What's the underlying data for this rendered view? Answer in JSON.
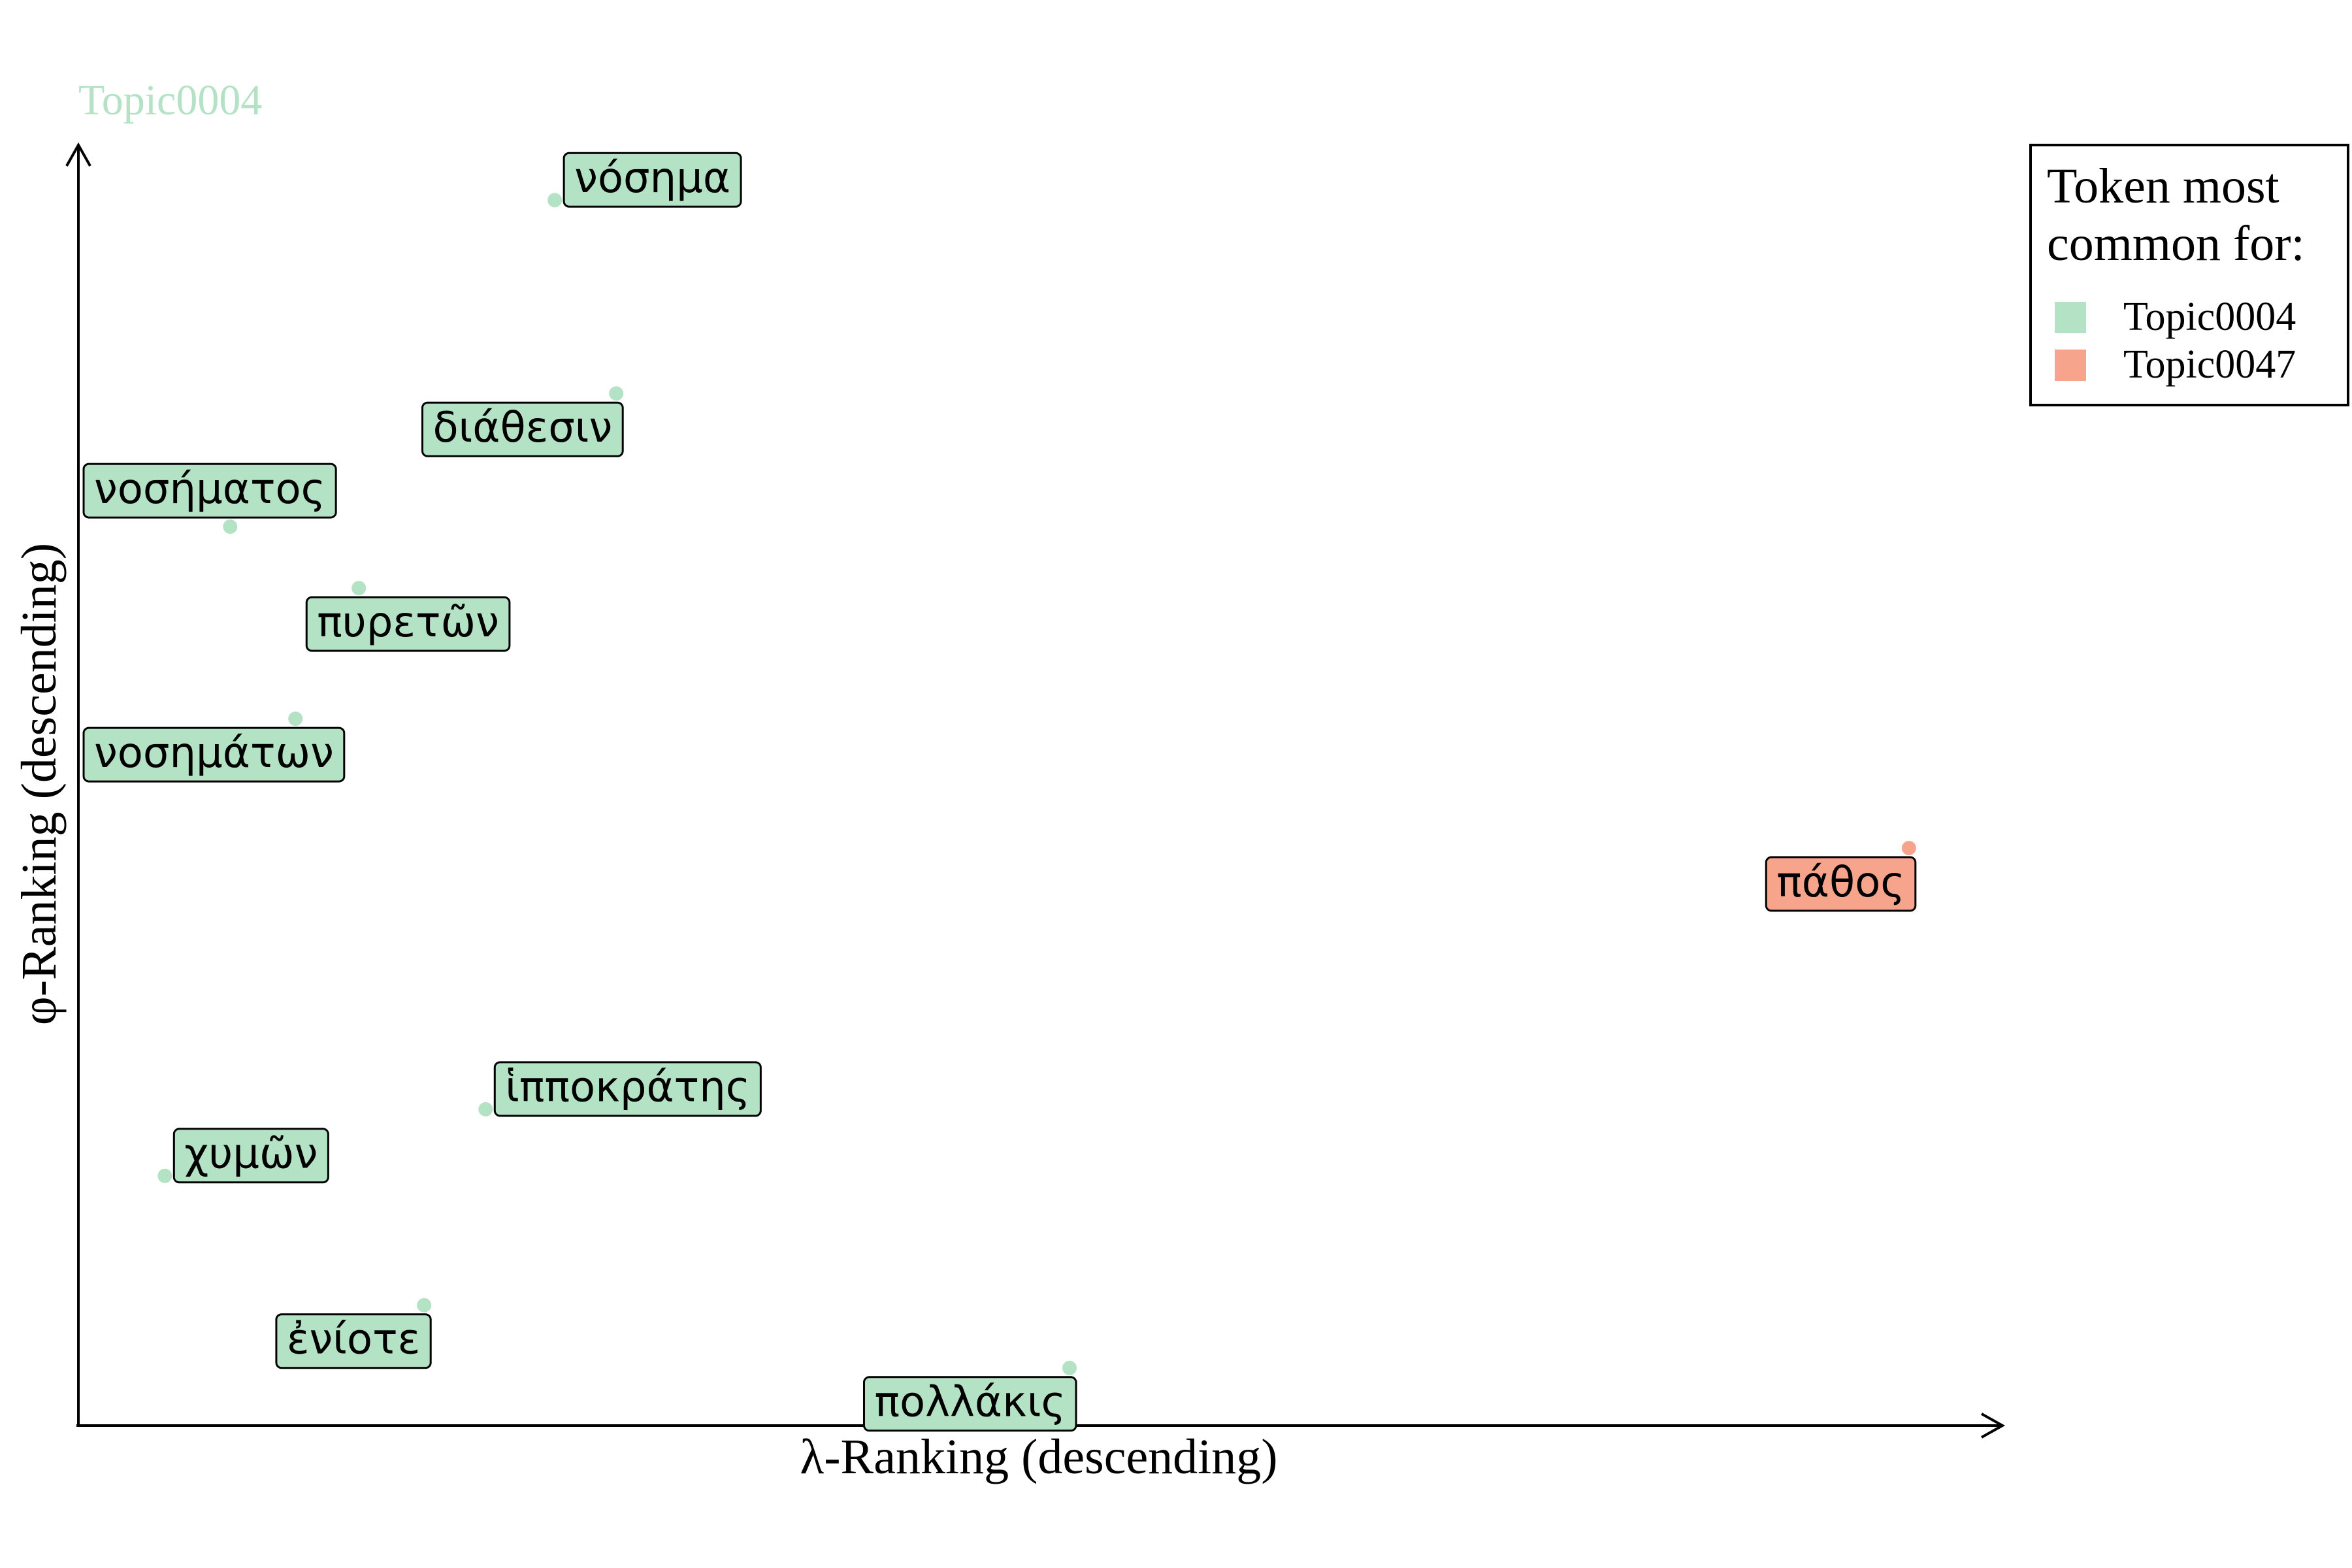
{
  "chart_data": {
    "type": "scatter",
    "title": "Topic0004",
    "xlabel": "λ-Ranking (descending)",
    "ylabel": "φ-Ranking (descending)",
    "xlim": [
      0,
      100
    ],
    "ylim": [
      0,
      100
    ],
    "grid": false,
    "axes_arrows": true,
    "legend": {
      "title_lines": [
        "Token most",
        "common for:"
      ],
      "position": "top-right",
      "entries": [
        {
          "name": "Topic0004",
          "color": "#b3e2c5"
        },
        {
          "name": "Topic0047",
          "color": "#f6a58c"
        }
      ]
    },
    "points": [
      {
        "label": "νόσημα",
        "x": 24.8,
        "y": 95.7,
        "topic": "Topic0004",
        "label_pos": "upper-right"
      },
      {
        "label": "διάθεσιν",
        "x": 28.0,
        "y": 80.6,
        "topic": "Topic0004",
        "label_pos": "lower-left"
      },
      {
        "label": "νοσήματος",
        "x": 7.9,
        "y": 70.2,
        "topic": "Topic0004",
        "label_pos": "upper-left"
      },
      {
        "label": "πυρετῶν",
        "x": 14.6,
        "y": 65.4,
        "topic": "Topic0004",
        "label_pos": "lower-right"
      },
      {
        "label": "νοσημάτων",
        "x": 11.3,
        "y": 55.2,
        "topic": "Topic0004",
        "label_pos": "lower-left"
      },
      {
        "label": "πάθος",
        "x": 95.3,
        "y": 45.1,
        "topic": "Topic0047",
        "label_pos": "lower-left"
      },
      {
        "label": "ἱπποκράτης",
        "x": 21.2,
        "y": 24.7,
        "topic": "Topic0004",
        "label_pos": "upper-right"
      },
      {
        "label": "χυμῶν",
        "x": 4.5,
        "y": 19.5,
        "topic": "Topic0004",
        "label_pos": "upper-right"
      },
      {
        "label": "ἐνίοτε",
        "x": 18.0,
        "y": 9.4,
        "topic": "Topic0004",
        "label_pos": "lower-left"
      },
      {
        "label": "πολλάκις",
        "x": 51.6,
        "y": 4.5,
        "topic": "Topic0004",
        "label_pos": "lower-left"
      }
    ]
  }
}
